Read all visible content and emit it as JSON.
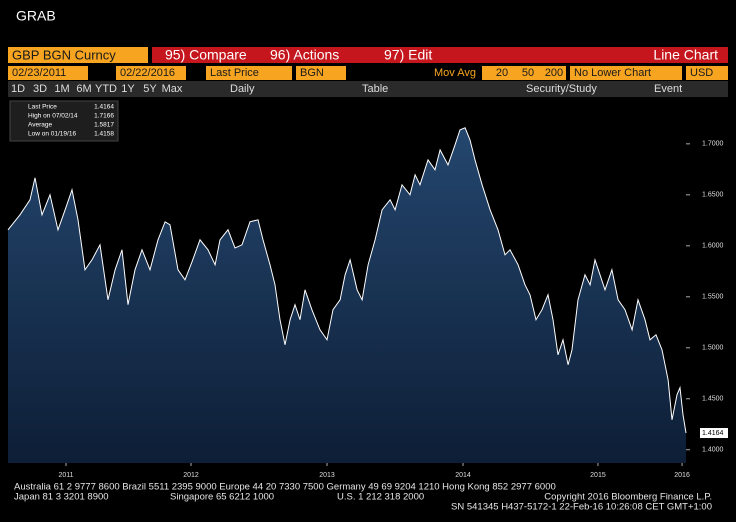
{
  "window_title": "GRAB",
  "toolbar": {
    "security": "GBP BGN Curncy",
    "compare": "95) Compare",
    "actions": "96) Actions",
    "edit": "97) Edit",
    "chart_type": "Line Chart"
  },
  "settings": {
    "start_date": "02/23/2011",
    "end_date": "02/22/2016",
    "field": "Last Price",
    "source": "BGN",
    "mov_avg": "Mov Avg",
    "ma_periods": [
      "20",
      "50",
      "200"
    ],
    "lower_chart": "No Lower Chart",
    "currency": "USD"
  },
  "periods": [
    "1D",
    "3D",
    "1M",
    "6M",
    "YTD",
    "1Y",
    "5Y",
    "Max"
  ],
  "frequency": "Daily",
  "table": "Table",
  "security_study": "Security/Study",
  "event": "Event",
  "footer": {
    "line1": "Australia 61 2 9777 8600 Brazil 5511 2395 9000 Europe 44 20 7330 7500 Germany 49 69 9204 1210 Hong Kong 852 2977 6000",
    "line2": [
      "Japan 81 3 3201 8900",
      "Singapore 65 6212 1000",
      "U.S. 1 212 318 2000",
      "Copyright 2016 Bloomberg Finance L.P."
    ],
    "line3": "SN 541345 H437-5172-1 22-Feb-16 10:26:08 CET  GMT+1:00"
  },
  "chart_data": {
    "type": "line",
    "legend_stats": [
      {
        "name": "Last Price",
        "value": 1.4164,
        "value_label": "1.4164"
      },
      {
        "name": "High on 07/02/14",
        "value": 1.7166,
        "value_label": "1.7166"
      },
      {
        "name": "Average",
        "value": 1.5817,
        "value_label": "1.5817"
      },
      {
        "name": "Low on 01/19/16",
        "value": 1.4158,
        "value_label": "1.4158"
      }
    ],
    "xlim": [
      2011.15,
      2016.14
    ],
    "xticks": [
      {
        "value": 2011.577,
        "label": "2011"
      },
      {
        "value": 2012.497,
        "label": "2012"
      },
      {
        "value": 2013.498,
        "label": "2013"
      },
      {
        "value": 2014.499,
        "label": "2014"
      },
      {
        "value": 2015.492,
        "label": "2015"
      },
      {
        "value": 2016.111,
        "label": "2016"
      }
    ],
    "ylim": [
      1.387,
      1.743
    ],
    "yticks": [
      {
        "value": 1.4,
        "label": "1.4000"
      },
      {
        "value": 1.45,
        "label": "1.4500"
      },
      {
        "value": 1.5,
        "label": "1.5000"
      },
      {
        "value": 1.55,
        "label": "1.5500"
      },
      {
        "value": 1.6,
        "label": "1.6000"
      },
      {
        "value": 1.65,
        "label": "1.6500"
      },
      {
        "value": 1.7,
        "label": "1.7000"
      }
    ],
    "series": [
      {
        "name": "Last Price",
        "color": "#ffffff",
        "x": [
          2011.15,
          2011.238,
          2011.312,
          2011.349,
          2011.4,
          2011.459,
          2011.518,
          2011.57,
          2011.621,
          2011.665,
          2011.717,
          2011.768,
          2011.827,
          2011.886,
          2011.938,
          2011.989,
          2012.033,
          2012.085,
          2012.136,
          2012.195,
          2012.254,
          2012.306,
          2012.342,
          2012.401,
          2012.453,
          2012.504,
          2012.563,
          2012.622,
          2012.674,
          2012.71,
          2012.769,
          2012.821,
          2012.872,
          2012.931,
          2012.99,
          2013.027,
          2013.078,
          2013.115,
          2013.152,
          2013.189,
          2013.226,
          2013.262,
          2013.299,
          2013.336,
          2013.387,
          2013.446,
          2013.498,
          2013.542,
          2013.594,
          2013.631,
          2013.668,
          2013.719,
          2013.756,
          2013.8,
          2013.852,
          2013.903,
          2013.962,
          2013.999,
          2014.05,
          2014.109,
          2014.146,
          2014.182,
          2014.241,
          2014.293,
          2014.33,
          2014.388,
          2014.44,
          2014.477,
          2014.514,
          2014.55,
          2014.587,
          2014.639,
          2014.698,
          2014.756,
          2014.808,
          2014.845,
          2014.904,
          2014.955,
          2014.992,
          2015.036,
          2015.08,
          2015.124,
          2015.161,
          2015.198,
          2015.235,
          2015.272,
          2015.301,
          2015.345,
          2015.397,
          2015.434,
          2015.47,
          2015.507,
          2015.544,
          2015.595,
          2015.64,
          2015.691,
          2015.743,
          2015.787,
          2015.838,
          2015.875,
          2015.919,
          2015.963,
          2016.008,
          2016.037,
          2016.074,
          2016.096,
          2016.118,
          2016.14
        ],
        "values": [
          1.6157,
          1.6304,
          1.6451,
          1.6667,
          1.6304,
          1.65,
          1.6157,
          1.6353,
          1.6549,
          1.6255,
          1.5765,
          1.5863,
          1.601,
          1.5471,
          1.5765,
          1.5961,
          1.5422,
          1.5765,
          1.5961,
          1.5765,
          1.6059,
          1.6235,
          1.6206,
          1.5765,
          1.5667,
          1.5843,
          1.6059,
          1.5961,
          1.5814,
          1.6059,
          1.6157,
          1.598,
          1.601,
          1.6235,
          1.6255,
          1.6059,
          1.5814,
          1.5618,
          1.5275,
          1.5029,
          1.5275,
          1.5422,
          1.5275,
          1.5569,
          1.5373,
          1.5176,
          1.5078,
          1.5373,
          1.5471,
          1.5716,
          1.5863,
          1.5569,
          1.5471,
          1.5814,
          1.6059,
          1.6353,
          1.6451,
          1.6353,
          1.6598,
          1.65,
          1.6696,
          1.6598,
          1.6843,
          1.6745,
          1.6941,
          1.6794,
          1.699,
          1.7137,
          1.7157,
          1.7039,
          1.6843,
          1.6598,
          1.6353,
          1.6157,
          1.5912,
          1.5961,
          1.5814,
          1.5618,
          1.552,
          1.5275,
          1.5373,
          1.552,
          1.5275,
          1.4931,
          1.5078,
          1.4833,
          1.498,
          1.5471,
          1.5716,
          1.5618,
          1.5863,
          1.5716,
          1.5569,
          1.5765,
          1.5471,
          1.5373,
          1.5176,
          1.5471,
          1.5275,
          1.5078,
          1.5127,
          1.498,
          1.4686,
          1.4294,
          1.4539,
          1.4608,
          1.4343,
          1.4164
        ]
      }
    ]
  }
}
